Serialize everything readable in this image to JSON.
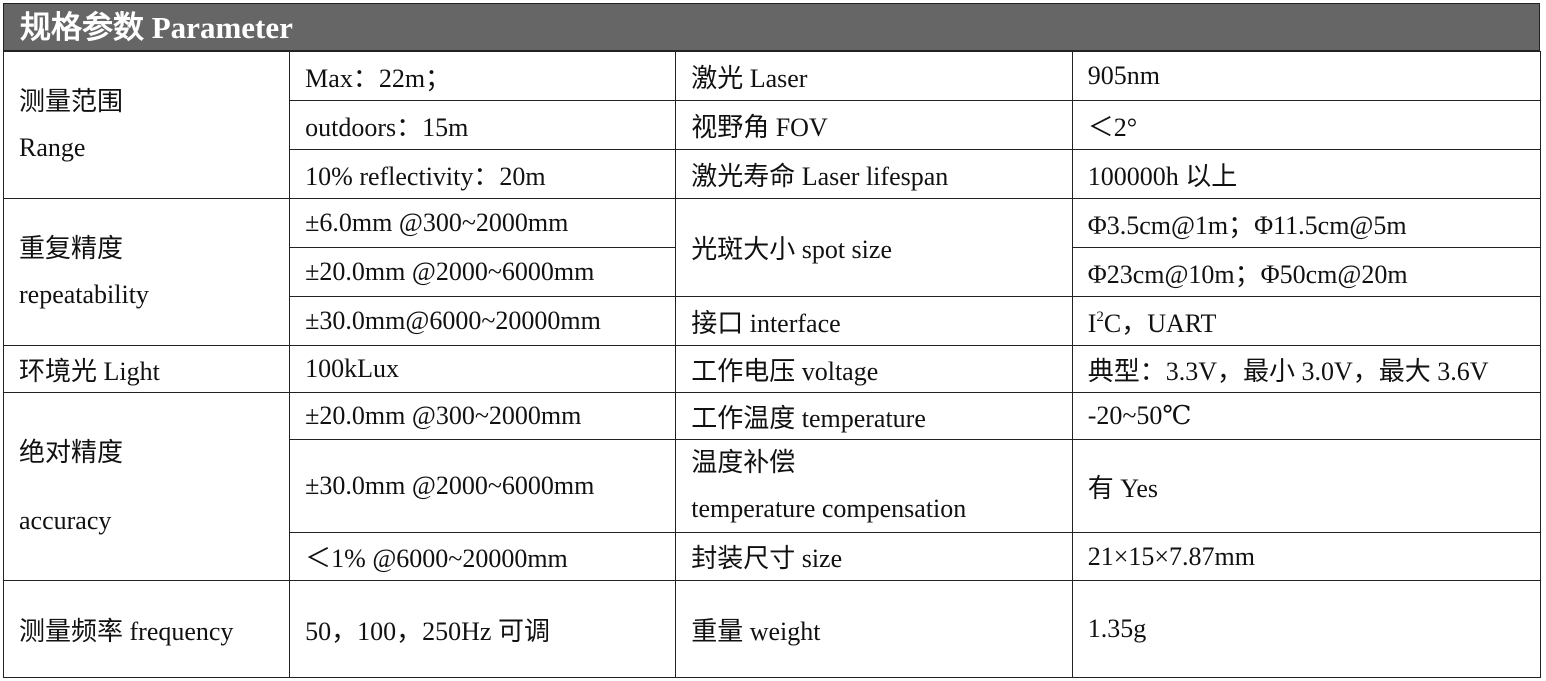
{
  "header": {
    "title": "规格参数 Parameter"
  },
  "rows": {
    "range": {
      "label_cn": "测量范围",
      "label_en": "Range",
      "v1": "Max：22m；",
      "v2": "outdoors：15m",
      "v3": "10% reflectivity：20m"
    },
    "laser": {
      "label": "激光 Laser",
      "value": "905nm"
    },
    "fov": {
      "label": "视野角 FOV",
      "value": "＜2°"
    },
    "lifespan": {
      "label": "激光寿命 Laser lifespan",
      "value": "100000h 以上"
    },
    "repeatability": {
      "label_cn": "重复精度",
      "label_en": "repeatability",
      "v1": "±6.0mm @300~2000mm",
      "v2": "±20.0mm @2000~6000mm",
      "v3": "±30.0mm@6000~20000mm"
    },
    "spot": {
      "label": "光斑大小 spot size",
      "v1": "Φ3.5cm@1m；Φ11.5cm@5m",
      "v2": "Φ23cm@10m；Φ50cm@20m"
    },
    "interface": {
      "label": "接口 interface",
      "value_pre": "I",
      "value_sup": "2",
      "value_post": "C，UART"
    },
    "light": {
      "label": "环境光 Light",
      "value": "100kLux"
    },
    "voltage": {
      "label": "工作电压 voltage",
      "value": "典型：3.3V，最小 3.0V，最大 3.6V"
    },
    "accuracy": {
      "label_cn": "绝对精度",
      "label_en": "accuracy",
      "v1": "±20.0mm @300~2000mm",
      "v2": "±30.0mm @2000~6000mm",
      "v3": "＜1% @6000~20000mm"
    },
    "temperature": {
      "label": "工作温度 temperature",
      "value": "-20~50℃"
    },
    "compensation": {
      "label_cn": "温度补偿",
      "label_en": "temperature compensation",
      "value": "有 Yes"
    },
    "size": {
      "label": "封装尺寸 size",
      "value": "21×15×7.87mm"
    },
    "frequency": {
      "label": "测量频率 frequency",
      "value": "50，100，250Hz 可调"
    },
    "weight": {
      "label": "重量 weight",
      "value": "1.35g"
    }
  }
}
